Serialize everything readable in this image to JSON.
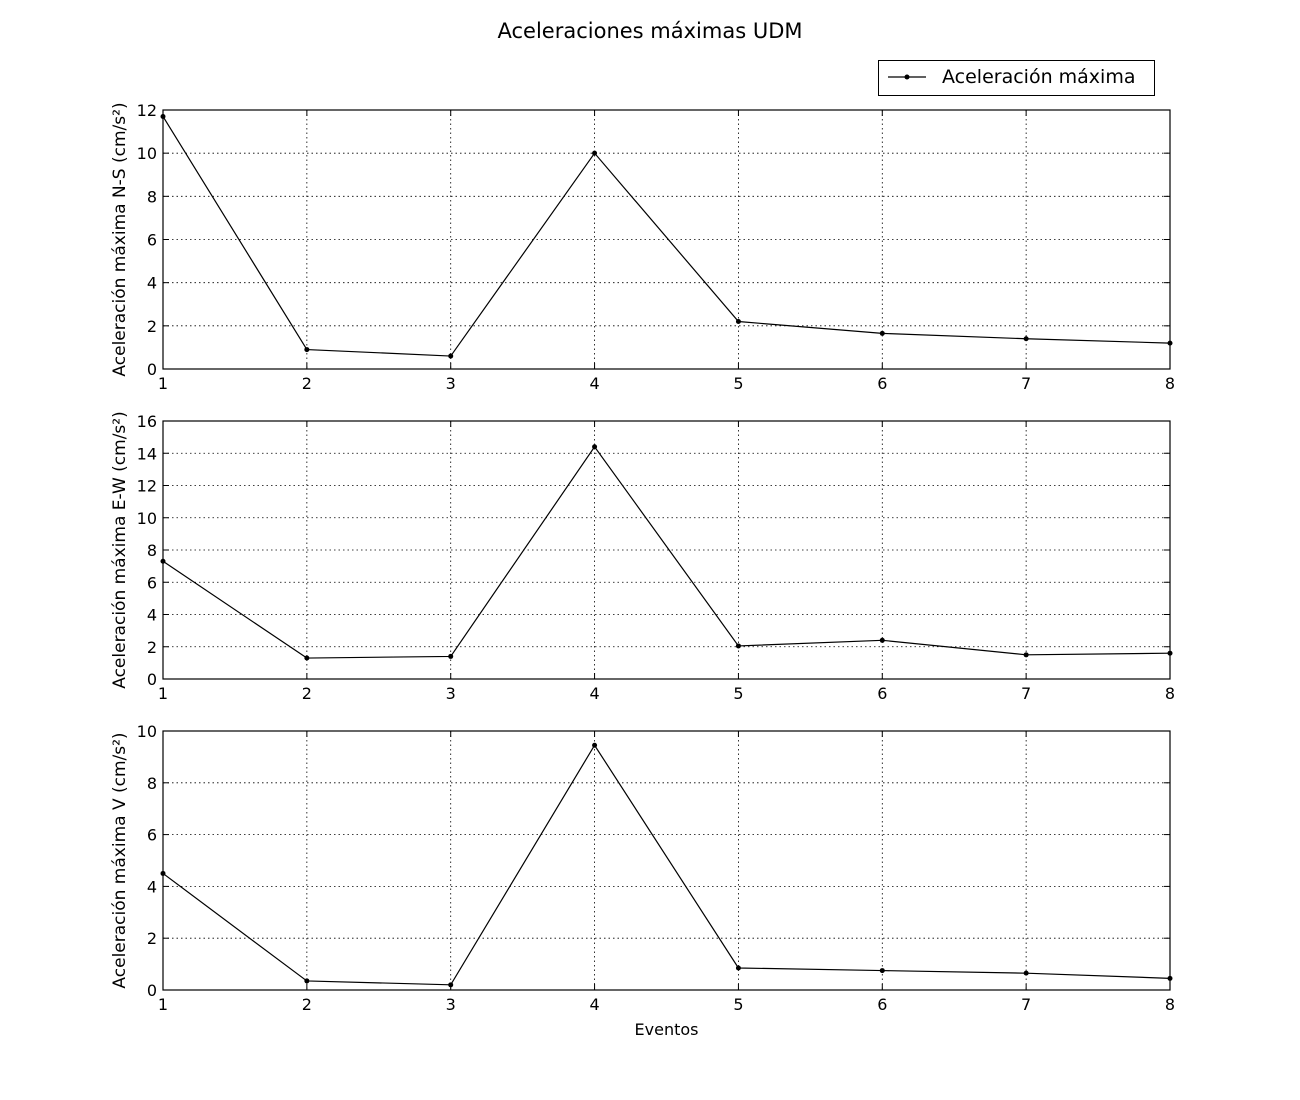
{
  "title": "Aceleraciones máximas UDM",
  "legend": {
    "label": "Aceleración máxima",
    "placement": "top-right"
  },
  "colors": {
    "line": "#000000",
    "grid": "#000000",
    "background": "#ffffff"
  },
  "chart_data": [
    {
      "type": "line",
      "ylabel": "Aceleración máxima N-S (cm/s²)",
      "xlabel": "",
      "x": [
        1,
        2,
        3,
        4,
        5,
        6,
        7,
        8
      ],
      "series": [
        {
          "name": "Aceleración máxima",
          "values": [
            11.7,
            0.9,
            0.6,
            10.0,
            2.2,
            1.65,
            1.4,
            1.2
          ]
        }
      ],
      "xlim": [
        1,
        8
      ],
      "ylim": [
        0,
        12
      ],
      "yticks": [
        0,
        2,
        4,
        6,
        8,
        10,
        12
      ],
      "xticks": [
        1,
        2,
        3,
        4,
        5,
        6,
        7,
        8
      ],
      "grid": true
    },
    {
      "type": "line",
      "ylabel": "Aceleración máxima E-W (cm/s²)",
      "xlabel": "",
      "x": [
        1,
        2,
        3,
        4,
        5,
        6,
        7,
        8
      ],
      "series": [
        {
          "name": "Aceleración máxima",
          "values": [
            7.3,
            1.3,
            1.4,
            14.4,
            2.05,
            2.4,
            1.5,
            1.6
          ]
        }
      ],
      "xlim": [
        1,
        8
      ],
      "ylim": [
        0,
        16
      ],
      "yticks": [
        0,
        2,
        4,
        6,
        8,
        10,
        12,
        14,
        16
      ],
      "xticks": [
        1,
        2,
        3,
        4,
        5,
        6,
        7,
        8
      ],
      "grid": true
    },
    {
      "type": "line",
      "ylabel": "Aceleración máxima V (cm/s²)",
      "xlabel": "Eventos",
      "x": [
        1,
        2,
        3,
        4,
        5,
        6,
        7,
        8
      ],
      "series": [
        {
          "name": "Aceleración máxima",
          "values": [
            4.5,
            0.35,
            0.2,
            9.45,
            0.85,
            0.75,
            0.65,
            0.45
          ]
        }
      ],
      "xlim": [
        1,
        8
      ],
      "ylim": [
        0,
        10
      ],
      "yticks": [
        0,
        2,
        4,
        6,
        8,
        10
      ],
      "xticks": [
        1,
        2,
        3,
        4,
        5,
        6,
        7,
        8
      ],
      "grid": true
    }
  ]
}
